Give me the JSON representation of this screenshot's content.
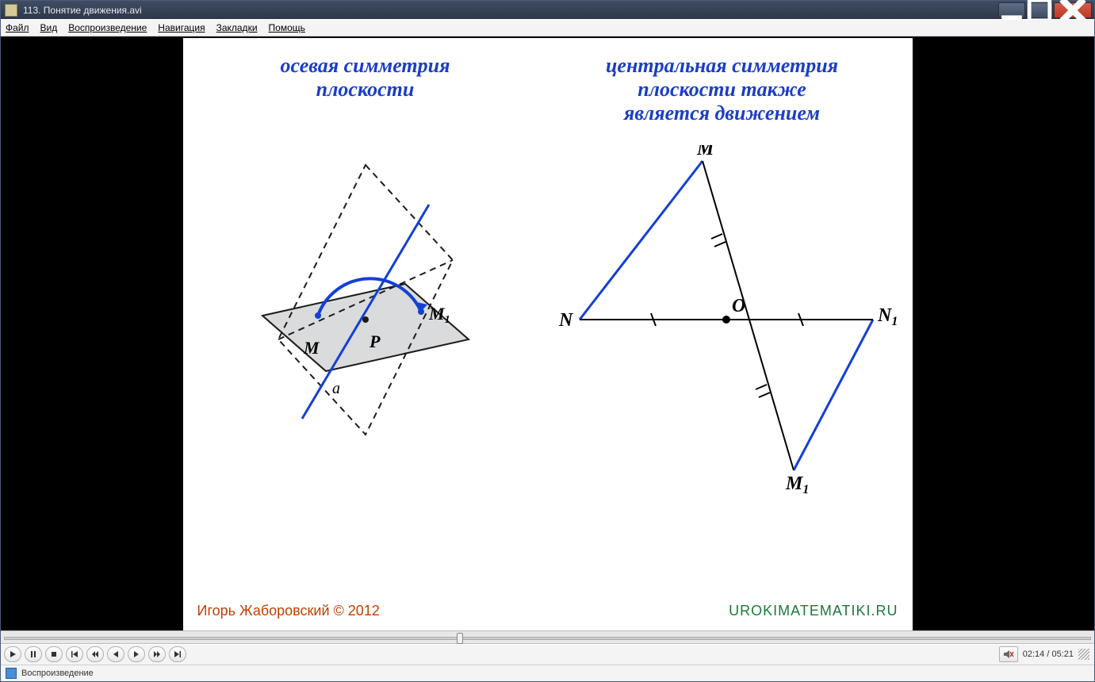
{
  "window": {
    "title": "113. Понятие движения.avi"
  },
  "menu": {
    "items": [
      "Файл",
      "Вид",
      "Воспроизведение",
      "Навигация",
      "Закладки",
      "Помощь"
    ]
  },
  "slide": {
    "left_title_l1": "осевая симметрия",
    "left_title_l2": "плоскости",
    "right_title_l1": "центральная симметрия",
    "right_title_l2": "плоскости также",
    "right_title_l3": "является движением",
    "left_diagram": {
      "labels": {
        "M": "M",
        "M1": "M₁",
        "P": "P",
        "a": "a"
      },
      "colors": {
        "blue": "#1440d6",
        "dash": "#1c1c1c",
        "plane_fill": "#d9dbdc",
        "plane_stroke": "#1c1c1c"
      }
    },
    "right_diagram": {
      "labels": {
        "M": "M",
        "N": "N",
        "O": "O",
        "N1": "N₁",
        "M1": "M₁"
      },
      "colors": {
        "blue": "#1440d6",
        "black": "#000"
      },
      "points": {
        "M": [
          185,
          0
        ],
        "N": [
          0,
          200
        ],
        "O": [
          185,
          200
        ],
        "N1": [
          370,
          200
        ],
        "M1": [
          285,
          390
        ]
      }
    },
    "title_color": "#1a3ec8",
    "title_fontsize": 26
  },
  "credits": {
    "left": "Игорь Жаборовский © 2012",
    "right": "UROKIMATEMATIKI.RU"
  },
  "playback": {
    "current": "02:14",
    "total": "05:21",
    "status": "Воспроизведение",
    "progress_pct": 41.8
  }
}
